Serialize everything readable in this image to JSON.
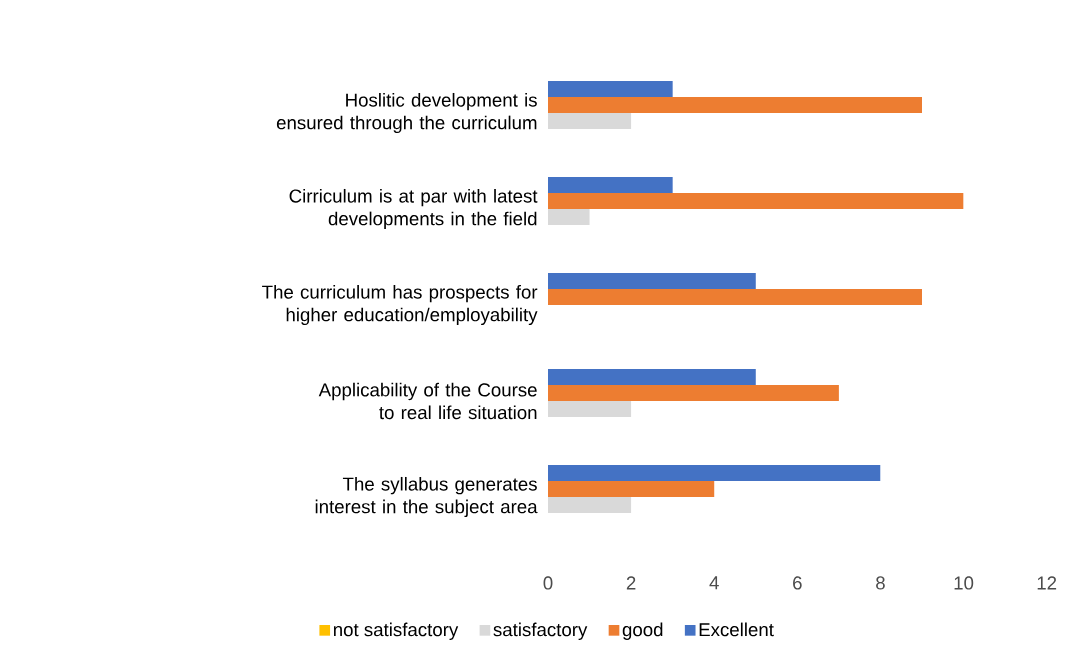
{
  "chart_data": {
    "type": "bar",
    "orientation": "horizontal",
    "categories": [
      "Hoslitic development is ensured through the curriculum",
      "Cirriculum is at par with latest developments in the field",
      "The curriculum has prospects for higher education/employability",
      "Applicability of the Course to real life situation",
      "The syllabus generates interest in the subject area"
    ],
    "series": [
      {
        "name": "not satisfactory",
        "color": "#ffc000",
        "values": [
          0,
          0,
          0,
          0,
          0
        ]
      },
      {
        "name": "satisfactory",
        "color": "#d9d9d9",
        "values": [
          2,
          1,
          0,
          2,
          2
        ]
      },
      {
        "name": "good",
        "color": "#ed7d31",
        "values": [
          9,
          10,
          9,
          7,
          4
        ]
      },
      {
        "name": "Excellent",
        "color": "#4472c4",
        "values": [
          3,
          3,
          5,
          5,
          8
        ]
      }
    ],
    "xlim": [
      0,
      12
    ],
    "xticks": [
      0,
      2,
      4,
      6,
      8,
      10,
      12
    ],
    "grid": false,
    "legend": "bottom"
  }
}
